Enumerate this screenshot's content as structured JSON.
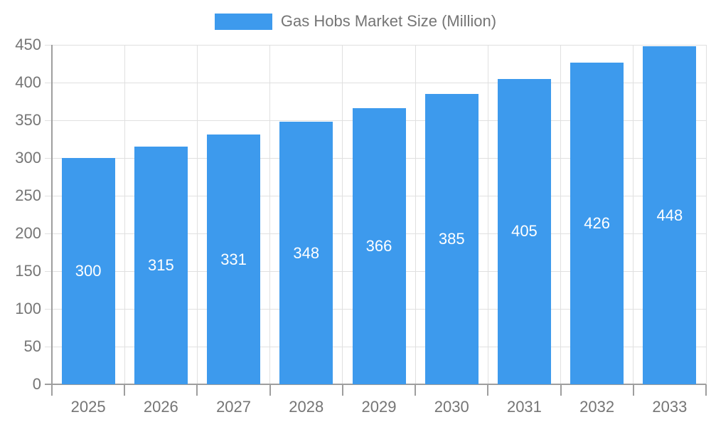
{
  "colors": {
    "bar": "#3D9AED",
    "grid": "#E0E0E0",
    "axis": "#9E9E9E",
    "text": "#757575",
    "value_label": "#FFFFFF",
    "background": "#FFFFFF"
  },
  "chart_data": {
    "type": "bar",
    "title": "Gas Hobs Market Size (Million)",
    "categories": [
      "2025",
      "2026",
      "2027",
      "2028",
      "2029",
      "2030",
      "2031",
      "2032",
      "2033"
    ],
    "values": [
      300,
      315,
      331,
      348,
      366,
      385,
      405,
      426,
      448
    ],
    "value_labels": [
      "300",
      "315",
      "331",
      "348",
      "366",
      "385",
      "405",
      "426",
      "448"
    ],
    "xlabel": "",
    "ylabel": "",
    "ylim": [
      0,
      450
    ],
    "yticks": [
      0,
      50,
      100,
      150,
      200,
      250,
      300,
      350,
      400,
      450
    ],
    "grid": "both",
    "legend_position": "top",
    "value_label_position": "inside-center"
  }
}
